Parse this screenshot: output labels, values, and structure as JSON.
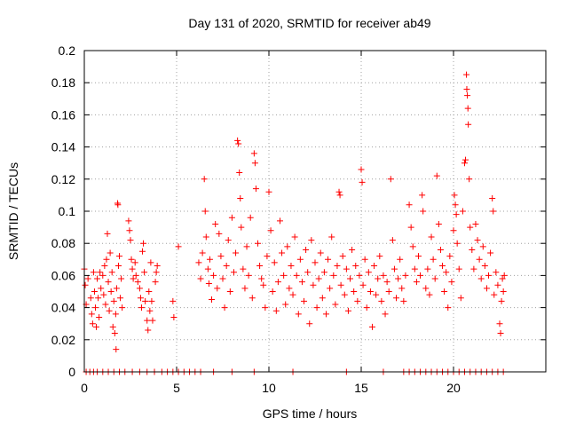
{
  "chart_data": {
    "type": "scatter",
    "title": "Day 131 of 2020, SRMTID for receiver ab49",
    "xlabel": "GPS time / hours",
    "ylabel": "SRMTID / TECUs",
    "xlim": [
      0,
      25
    ],
    "ylim": [
      0,
      0.2
    ],
    "x_ticks": [
      0,
      5,
      10,
      15,
      20
    ],
    "x_tick_labels": [
      "0",
      "5",
      "10",
      "15",
      "20"
    ],
    "y_ticks": [
      0,
      0.02,
      0.04,
      0.06,
      0.08,
      0.1,
      0.12,
      0.14,
      0.16,
      0.18,
      0.2
    ],
    "y_tick_labels": [
      "0",
      "0.02",
      "0.04",
      "0.06",
      "0.08",
      "0.1",
      "0.12",
      "0.14",
      "0.16",
      "0.18",
      "0.2"
    ],
    "grid": true,
    "marker": "+",
    "series_color": "#ff0000",
    "frame_color": "#000000",
    "series": [
      {
        "name": "SRMTID",
        "points": [
          [
            0.0,
            0.064
          ],
          [
            0.05,
            0.054
          ],
          [
            0.1,
            0.042
          ],
          [
            0.2,
            0.058
          ],
          [
            0.35,
            0.046
          ],
          [
            0.4,
            0.036
          ],
          [
            0.45,
            0.03
          ],
          [
            0.5,
            0.062
          ],
          [
            0.55,
            0.05
          ],
          [
            0.6,
            0.04
          ],
          [
            0.65,
            0.028
          ],
          [
            0.7,
            0.058
          ],
          [
            0.75,
            0.046
          ],
          [
            0.8,
            0.034
          ],
          [
            0.85,
            0.062
          ],
          [
            0.9,
            0.052
          ],
          [
            1.0,
            0.06
          ],
          [
            1.05,
            0.048
          ],
          [
            1.1,
            0.066
          ],
          [
            1.15,
            0.042
          ],
          [
            1.2,
            0.07
          ],
          [
            1.25,
            0.086
          ],
          [
            1.3,
            0.056
          ],
          [
            1.35,
            0.038
          ],
          [
            1.4,
            0.074
          ],
          [
            1.45,
            0.05
          ],
          [
            1.5,
            0.062
          ],
          [
            1.55,
            0.028
          ],
          [
            1.6,
            0.044
          ],
          [
            1.65,
            0.024
          ],
          [
            1.7,
            0.036
          ],
          [
            1.72,
            0.014
          ],
          [
            1.75,
            0.052
          ],
          [
            1.8,
            0.105
          ],
          [
            1.82,
            0.104
          ],
          [
            1.85,
            0.066
          ],
          [
            1.9,
            0.072
          ],
          [
            1.95,
            0.046
          ],
          [
            2.0,
            0.058
          ],
          [
            2.05,
            0.04
          ],
          [
            2.4,
            0.094
          ],
          [
            2.45,
            0.088
          ],
          [
            2.5,
            0.082
          ],
          [
            2.55,
            0.07
          ],
          [
            2.6,
            0.064
          ],
          [
            2.65,
            0.058
          ],
          [
            2.75,
            0.068
          ],
          [
            2.8,
            0.06
          ],
          [
            2.9,
            0.056
          ],
          [
            3.0,
            0.052
          ],
          [
            3.05,
            0.046
          ],
          [
            3.1,
            0.04
          ],
          [
            3.15,
            0.075
          ],
          [
            3.2,
            0.08
          ],
          [
            3.25,
            0.062
          ],
          [
            3.3,
            0.044
          ],
          [
            3.4,
            0.032
          ],
          [
            3.45,
            0.026
          ],
          [
            3.5,
            0.05
          ],
          [
            3.55,
            0.038
          ],
          [
            3.6,
            0.068
          ],
          [
            3.65,
            0.044
          ],
          [
            3.7,
            0.032
          ],
          [
            3.85,
            0.056
          ],
          [
            3.9,
            0.062
          ],
          [
            3.95,
            0.066
          ],
          [
            4.8,
            0.044
          ],
          [
            4.85,
            0.034
          ],
          [
            5.1,
            0.078
          ],
          [
            6.2,
            0.068
          ],
          [
            6.3,
            0.058
          ],
          [
            6.4,
            0.074
          ],
          [
            6.5,
            0.12
          ],
          [
            6.55,
            0.1
          ],
          [
            6.6,
            0.084
          ],
          [
            6.7,
            0.064
          ],
          [
            6.75,
            0.055
          ],
          [
            6.8,
            0.07
          ],
          [
            6.9,
            0.045
          ],
          [
            7.0,
            0.06
          ],
          [
            7.1,
            0.092
          ],
          [
            7.2,
            0.052
          ],
          [
            7.3,
            0.086
          ],
          [
            7.4,
            0.072
          ],
          [
            7.5,
            0.058
          ],
          [
            7.6,
            0.04
          ],
          [
            7.7,
            0.066
          ],
          [
            7.8,
            0.082
          ],
          [
            7.9,
            0.05
          ],
          [
            8.0,
            0.096
          ],
          [
            8.1,
            0.062
          ],
          [
            8.2,
            0.074
          ],
          [
            8.3,
            0.144
          ],
          [
            8.35,
            0.142
          ],
          [
            8.4,
            0.124
          ],
          [
            8.45,
            0.108
          ],
          [
            8.5,
            0.09
          ],
          [
            8.6,
            0.064
          ],
          [
            8.7,
            0.052
          ],
          [
            8.8,
            0.078
          ],
          [
            8.9,
            0.06
          ],
          [
            9.0,
            0.096
          ],
          [
            9.1,
            0.046
          ],
          [
            9.2,
            0.136
          ],
          [
            9.25,
            0.13
          ],
          [
            9.3,
            0.114
          ],
          [
            9.4,
            0.08
          ],
          [
            9.5,
            0.066
          ],
          [
            9.6,
            0.058
          ],
          [
            9.7,
            0.054
          ],
          [
            9.8,
            0.04
          ],
          [
            9.9,
            0.072
          ],
          [
            10.0,
            0.112
          ],
          [
            10.1,
            0.088
          ],
          [
            10.2,
            0.05
          ],
          [
            10.3,
            0.068
          ],
          [
            10.4,
            0.038
          ],
          [
            10.5,
            0.056
          ],
          [
            10.6,
            0.094
          ],
          [
            10.7,
            0.074
          ],
          [
            10.8,
            0.06
          ],
          [
            10.9,
            0.042
          ],
          [
            11.0,
            0.078
          ],
          [
            11.1,
            0.052
          ],
          [
            11.2,
            0.066
          ],
          [
            11.3,
            0.048
          ],
          [
            11.4,
            0.084
          ],
          [
            11.5,
            0.06
          ],
          [
            11.6,
            0.036
          ],
          [
            11.7,
            0.07
          ],
          [
            11.8,
            0.056
          ],
          [
            11.9,
            0.044
          ],
          [
            12.0,
            0.076
          ],
          [
            12.1,
            0.062
          ],
          [
            12.2,
            0.03
          ],
          [
            12.3,
            0.082
          ],
          [
            12.4,
            0.054
          ],
          [
            12.5,
            0.068
          ],
          [
            12.6,
            0.04
          ],
          [
            12.7,
            0.058
          ],
          [
            12.8,
            0.074
          ],
          [
            12.9,
            0.046
          ],
          [
            13.0,
            0.062
          ],
          [
            13.1,
            0.036
          ],
          [
            13.2,
            0.07
          ],
          [
            13.3,
            0.052
          ],
          [
            13.4,
            0.084
          ],
          [
            13.5,
            0.06
          ],
          [
            13.6,
            0.042
          ],
          [
            13.7,
            0.066
          ],
          [
            13.8,
            0.112
          ],
          [
            13.85,
            0.11
          ],
          [
            13.9,
            0.054
          ],
          [
            14.0,
            0.072
          ],
          [
            14.1,
            0.048
          ],
          [
            14.2,
            0.064
          ],
          [
            14.3,
            0.038
          ],
          [
            14.4,
            0.058
          ],
          [
            14.5,
            0.076
          ],
          [
            14.6,
            0.05
          ],
          [
            14.7,
            0.066
          ],
          [
            14.8,
            0.044
          ],
          [
            14.9,
            0.06
          ],
          [
            15.0,
            0.126
          ],
          [
            15.05,
            0.118
          ],
          [
            15.1,
            0.054
          ],
          [
            15.2,
            0.07
          ],
          [
            15.3,
            0.04
          ],
          [
            15.4,
            0.062
          ],
          [
            15.5,
            0.05
          ],
          [
            15.6,
            0.028
          ],
          [
            15.7,
            0.066
          ],
          [
            15.8,
            0.048
          ],
          [
            15.9,
            0.058
          ],
          [
            16.0,
            0.072
          ],
          [
            16.1,
            0.044
          ],
          [
            16.2,
            0.06
          ],
          [
            16.3,
            0.036
          ],
          [
            16.4,
            0.056
          ],
          [
            16.5,
            0.05
          ],
          [
            16.6,
            0.12
          ],
          [
            16.7,
            0.082
          ],
          [
            16.8,
            0.064
          ],
          [
            16.9,
            0.046
          ],
          [
            17.0,
            0.058
          ],
          [
            17.1,
            0.07
          ],
          [
            17.2,
            0.052
          ],
          [
            17.3,
            0.044
          ],
          [
            17.4,
            0.06
          ],
          [
            17.6,
            0.104
          ],
          [
            17.7,
            0.09
          ],
          [
            17.8,
            0.078
          ],
          [
            17.9,
            0.064
          ],
          [
            18.0,
            0.056
          ],
          [
            18.1,
            0.072
          ],
          [
            18.2,
            0.06
          ],
          [
            18.3,
            0.11
          ],
          [
            18.35,
            0.1
          ],
          [
            18.5,
            0.052
          ],
          [
            18.6,
            0.064
          ],
          [
            18.7,
            0.048
          ],
          [
            18.8,
            0.084
          ],
          [
            18.9,
            0.07
          ],
          [
            19.0,
            0.058
          ],
          [
            19.1,
            0.122
          ],
          [
            19.2,
            0.092
          ],
          [
            19.3,
            0.076
          ],
          [
            19.4,
            0.066
          ],
          [
            19.5,
            0.05
          ],
          [
            19.6,
            0.062
          ],
          [
            19.7,
            0.04
          ],
          [
            19.8,
            0.072
          ],
          [
            19.9,
            0.056
          ],
          [
            20.0,
            0.088
          ],
          [
            20.05,
            0.11
          ],
          [
            20.1,
            0.104
          ],
          [
            20.15,
            0.098
          ],
          [
            20.2,
            0.08
          ],
          [
            20.3,
            0.064
          ],
          [
            20.4,
            0.046
          ],
          [
            20.5,
            0.1
          ],
          [
            20.6,
            0.13
          ],
          [
            20.65,
            0.132
          ],
          [
            20.7,
            0.185
          ],
          [
            20.72,
            0.176
          ],
          [
            20.75,
            0.172
          ],
          [
            20.78,
            0.164
          ],
          [
            20.8,
            0.154
          ],
          [
            20.85,
            0.12
          ],
          [
            20.9,
            0.09
          ],
          [
            21.0,
            0.076
          ],
          [
            21.1,
            0.064
          ],
          [
            21.2,
            0.092
          ],
          [
            21.3,
            0.082
          ],
          [
            21.4,
            0.07
          ],
          [
            21.5,
            0.058
          ],
          [
            21.6,
            0.078
          ],
          [
            21.7,
            0.066
          ],
          [
            21.8,
            0.052
          ],
          [
            21.9,
            0.06
          ],
          [
            22.0,
            0.074
          ],
          [
            22.1,
            0.108
          ],
          [
            22.15,
            0.1
          ],
          [
            22.2,
            0.048
          ],
          [
            22.3,
            0.062
          ],
          [
            22.4,
            0.054
          ],
          [
            22.5,
            0.03
          ],
          [
            22.55,
            0.024
          ],
          [
            22.6,
            0.044
          ],
          [
            22.65,
            0.058
          ],
          [
            22.7,
            0.05
          ],
          [
            22.75,
            0.06
          ],
          [
            0.1,
            0.0
          ],
          [
            0.3,
            0.0
          ],
          [
            0.5,
            0.0
          ],
          [
            0.7,
            0.0
          ],
          [
            1.0,
            0.0
          ],
          [
            1.3,
            0.0
          ],
          [
            1.6,
            0.0
          ],
          [
            1.9,
            0.0
          ],
          [
            2.2,
            0.0
          ],
          [
            2.6,
            0.0
          ],
          [
            3.0,
            0.0
          ],
          [
            3.4,
            0.0
          ],
          [
            3.8,
            0.0
          ],
          [
            4.2,
            0.0
          ],
          [
            4.5,
            0.0
          ],
          [
            4.8,
            0.0
          ],
          [
            5.1,
            0.0
          ],
          [
            5.4,
            0.0
          ],
          [
            5.7,
            0.0
          ],
          [
            6.0,
            0.0
          ],
          [
            6.3,
            0.0
          ],
          [
            7.0,
            0.0
          ],
          [
            8.0,
            0.0
          ],
          [
            9.2,
            0.0
          ],
          [
            11.3,
            0.0
          ],
          [
            14.2,
            0.0
          ],
          [
            16.2,
            0.0
          ],
          [
            17.3,
            0.0
          ],
          [
            17.6,
            0.0
          ],
          [
            17.9,
            0.0
          ],
          [
            18.2,
            0.0
          ],
          [
            18.5,
            0.0
          ],
          [
            18.8,
            0.0
          ],
          [
            19.1,
            0.0
          ],
          [
            19.4,
            0.0
          ],
          [
            19.7,
            0.0
          ],
          [
            20.0,
            0.0
          ],
          [
            20.3,
            0.0
          ],
          [
            20.6,
            0.0
          ],
          [
            20.9,
            0.0
          ],
          [
            21.2,
            0.0
          ],
          [
            21.5,
            0.0
          ],
          [
            21.8,
            0.0
          ],
          [
            22.1,
            0.0
          ],
          [
            22.4,
            0.0
          ],
          [
            22.7,
            0.0
          ]
        ]
      }
    ]
  }
}
